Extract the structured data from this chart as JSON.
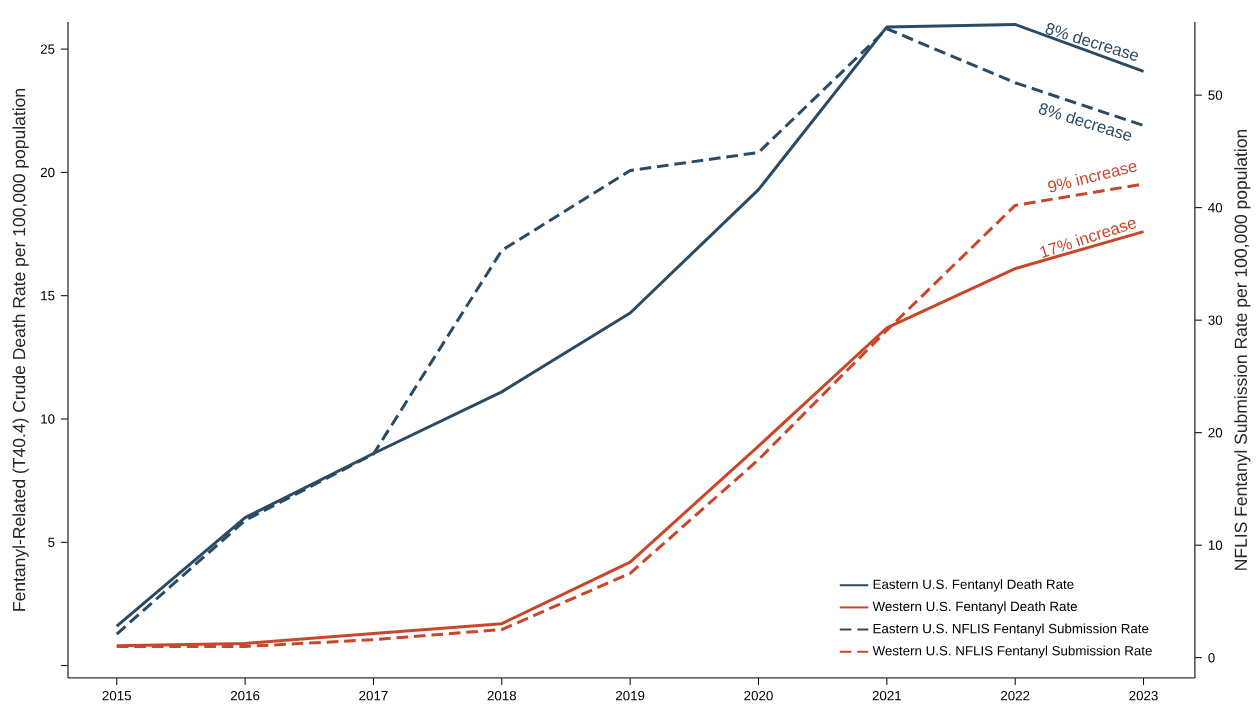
{
  "chart_data": {
    "type": "line",
    "ylabel": "Fentanyl-Related (T40.4) Crude Death Rate per 100,000 population",
    "y2label": "NFLIS Fentanyl Submission Rate per 100,000 population",
    "x": [
      2015,
      2016,
      2017,
      2018,
      2019,
      2020,
      2021,
      2022,
      2023
    ],
    "xlim": [
      2014.62,
      2023.4
    ],
    "xticks": [
      2015,
      2016,
      2017,
      2018,
      2019,
      2020,
      2021,
      2022,
      2023
    ],
    "ylim": [
      -0.5,
      26.1
    ],
    "yticks": [
      {
        "value": 0,
        "label": null
      },
      5,
      10,
      15,
      20,
      25
    ],
    "y2lim": [
      -1.8,
      56.5
    ],
    "y2ticks": [
      0,
      10,
      20,
      30,
      40,
      50
    ],
    "grid": false,
    "legend": "bottom right",
    "marker": "none",
    "series": [
      {
        "name": "Eastern U.S. Fentanyl Death Rate",
        "color": "#2b4a63",
        "line_style": "solid",
        "values": [
          1.6,
          6.0,
          8.6,
          11.1,
          14.3,
          19.3,
          25.9,
          26.0,
          24.1
        ]
      },
      {
        "name": "Western U.S. Fentanyl Death Rate",
        "color": "#c8472b",
        "line_style": "solid",
        "values": [
          0.8,
          0.9,
          1.3,
          1.7,
          4.2,
          8.9,
          13.7,
          16.1,
          17.6
        ]
      },
      {
        "name": "Eastern U.S. NFLIS Fentanyl Submission Rate",
        "color": "#2b4a63",
        "line_style": "dashed",
        "axis": "y2",
        "values": [
          2.1,
          12.2,
          18.1,
          36.2,
          43.3,
          44.9,
          55.9,
          51.1,
          47.3
        ]
      },
      {
        "name": "Western U.S. NFLIS Fentanyl Submission Rate",
        "color": "#c8472b",
        "line_style": "dashed",
        "axis": "y2",
        "values": [
          1.0,
          1.0,
          1.6,
          2.5,
          7.5,
          17.6,
          29.1,
          40.2,
          42.1
        ]
      }
    ],
    "annotations": [
      "8% decrease",
      "8% decrease",
      "9% increase",
      "17% increase"
    ]
  }
}
